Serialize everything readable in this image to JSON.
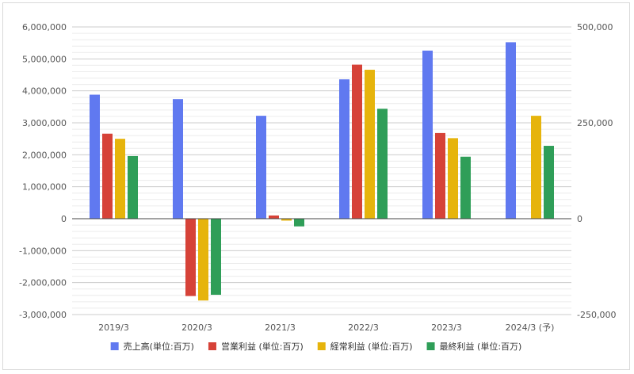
{
  "chart_data": {
    "type": "bar",
    "categories": [
      "2019/3",
      "2020/3",
      "2021/3",
      "2022/3",
      "2023/3",
      "2024/3 (予)"
    ],
    "series": [
      {
        "name": "売上高(単位:百万)",
        "color": "#6079f0",
        "values": [
          3880000,
          3740000,
          3220000,
          4360000,
          5260000,
          5520000
        ]
      },
      {
        "name": "営業利益 (単位:百万)",
        "color": "#d64238",
        "values": [
          2660000,
          -2420000,
          100000,
          4820000,
          2680000,
          null
        ]
      },
      {
        "name": "経常利益 (単位:百万)",
        "color": "#e6b40c",
        "values": [
          2500000,
          -2560000,
          -60000,
          4660000,
          2520000,
          3220000
        ]
      },
      {
        "name": "最終利益 (単位:百万)",
        "color": "#2f9e58",
        "values": [
          1960000,
          -2380000,
          -240000,
          3440000,
          1940000,
          2280000
        ]
      }
    ],
    "y_left": {
      "range": [
        -3000000,
        6000000
      ],
      "ticks": [
        "6,000,000",
        "5,000,000",
        "4,000,000",
        "3,000,000",
        "2,000,000",
        "1,000,000",
        "0",
        "-1,000,000",
        "-2,000,000",
        "-3,000,000"
      ]
    },
    "y_right": {
      "range": [
        -250000,
        500000
      ],
      "ticks": [
        "500,000",
        "250,000",
        "0",
        "-250,000"
      ]
    },
    "grid": true,
    "legend_position": "bottom"
  }
}
